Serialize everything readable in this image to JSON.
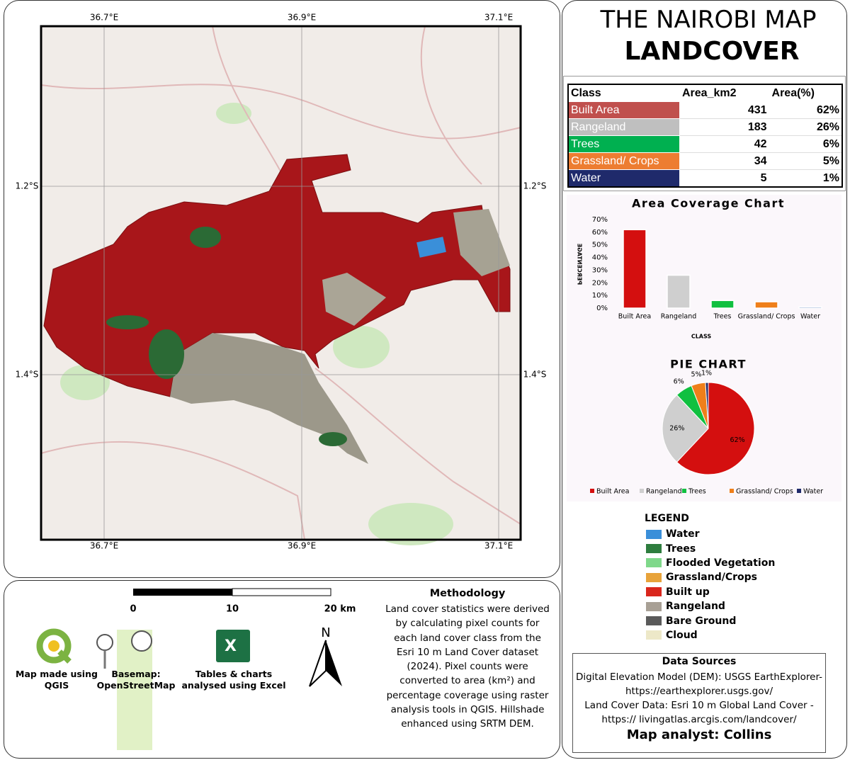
{
  "title": "THE NAIROBI MAP",
  "subtitle": "LANDCOVER",
  "map": {
    "lon_labels": [
      "36.7°E",
      "36.9°E",
      "37.1°E"
    ],
    "lat_labels": [
      "1.2°S",
      "1.4°S"
    ]
  },
  "table": {
    "columns": [
      "Class",
      "Area_km2",
      "Area(%)"
    ],
    "rows": [
      [
        "Built Area",
        "431",
        "62%"
      ],
      [
        "Rangeland",
        "183",
        "26%"
      ],
      [
        "Trees",
        "42",
        "6%"
      ],
      [
        "Grassland/ Crops",
        "34",
        "5%"
      ],
      [
        "Water",
        "5",
        "1%"
      ]
    ],
    "row_colors": [
      "#c0504d",
      "#bfbfbf",
      "#00b050",
      "#ed7d31",
      "#1f2a6b"
    ]
  },
  "chart_data": [
    {
      "type": "bar",
      "title": "Area Coverage Chart",
      "y_label": "PERCENTAGE",
      "x_label": "CLASS",
      "categories": [
        "Built Area",
        "Rangeland",
        "Trees",
        "Grassland/ Crops",
        "Water"
      ],
      "values": [
        62,
        26,
        6,
        5,
        1
      ],
      "colors": [
        "#d40f0f",
        "#cfcfcf",
        "#10c040",
        "#ef7f1a",
        "#2a5caa"
      ],
      "ylim": [
        0,
        70
      ],
      "yticks": [
        {
          "value": 0,
          "label": "0%"
        },
        {
          "value": 10,
          "label": "10%"
        },
        {
          "value": 20,
          "label": "20%"
        },
        {
          "value": 30,
          "label": "30%"
        },
        {
          "value": 40,
          "label": "40%"
        },
        {
          "value": 50,
          "label": "50%"
        },
        {
          "value": 60,
          "label": "60%"
        },
        {
          "value": 70,
          "label": "70%"
        }
      ]
    },
    {
      "type": "pie",
      "title": "PIE CHART",
      "categories": [
        "Built Area",
        "Rangeland",
        "Trees",
        "Grassland/ Crops",
        "Water"
      ],
      "values": [
        62,
        26,
        6,
        5,
        1
      ],
      "value_labels": [
        "62%",
        "26%",
        "6%",
        "5%",
        "1%"
      ],
      "colors": [
        "#d40f0f",
        "#cfcfcf",
        "#10c040",
        "#ef7f1a",
        "#1f2a6b"
      ],
      "legend": "bottom"
    }
  ],
  "legend": {
    "title": "LEGEND",
    "items": [
      {
        "label": "Water",
        "color": "#3a8fd9"
      },
      {
        "label": "Trees",
        "color": "#2e7d3e"
      },
      {
        "label": "Flooded Vegetation",
        "color": "#7fd88a"
      },
      {
        "label": "Grassland/Crops",
        "color": "#e8a33a"
      },
      {
        "label": "Built up",
        "color": "#d9261c"
      },
      {
        "label": "Rangeland",
        "color": "#a8a095"
      },
      {
        "label": "Bare Ground",
        "color": "#5a5a5a"
      },
      {
        "label": "Cloud",
        "color": "#ede8c8"
      }
    ]
  },
  "scale_bar": {
    "labels": [
      "0",
      "10",
      "20 km"
    ]
  },
  "credits": [
    "Map made using QGIS",
    "Basemap: OpenStreetMap",
    "Tables & charts analysed using Excel"
  ],
  "north": "N",
  "methodology": {
    "title": "Methodology",
    "text": "Land cover statistics were derived by calculating pixel counts for each land cover class from the Esri 10 m Land Cover dataset (2024). Pixel counts were converted to area (km²) and percentage coverage using raster analysis tools in QGIS. Hillshade enhanced using SRTM DEM."
  },
  "data_sources": {
    "title": "Data Sources",
    "lines": [
      "Digital Elevation Model (DEM): USGS EarthExplorer- https://earthexplorer.usgs.gov/",
      "Land Cover Data: Esri 10 m Global Land Cover - https:// livingatlas.arcgis.com/landcover/"
    ],
    "analyst": "Map analyst: Collins"
  }
}
